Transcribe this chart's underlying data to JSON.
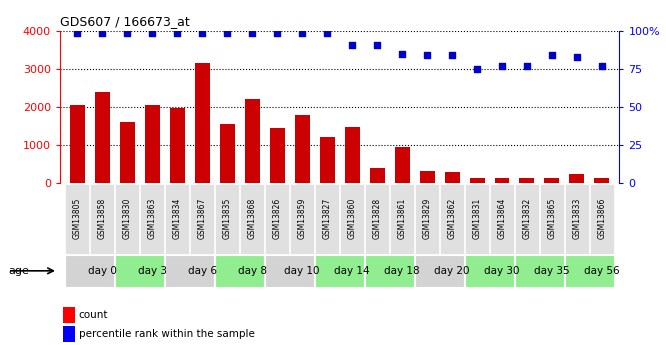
{
  "title": "GDS607 / 166673_at",
  "samples": [
    "GSM13805",
    "GSM13858",
    "GSM13830",
    "GSM13863",
    "GSM13834",
    "GSM13867",
    "GSM13835",
    "GSM13868",
    "GSM13826",
    "GSM13859",
    "GSM13827",
    "GSM13860",
    "GSM13828",
    "GSM13861",
    "GSM13829",
    "GSM13862",
    "GSM13831",
    "GSM13864",
    "GSM13832",
    "GSM13865",
    "GSM13833",
    "GSM13866"
  ],
  "counts": [
    2050,
    2400,
    1600,
    2050,
    1970,
    3150,
    1550,
    2200,
    1450,
    1800,
    1200,
    1480,
    380,
    950,
    300,
    290,
    120,
    140,
    120,
    130,
    230,
    120
  ],
  "percentiles": [
    99,
    99,
    99,
    99,
    99,
    99,
    99,
    99,
    99,
    99,
    99,
    91,
    91,
    85,
    84,
    84,
    75,
    77,
    77,
    84,
    83,
    77
  ],
  "day_groups": [
    {
      "label": "day 0",
      "start": 0,
      "end": 2,
      "color": "#d3d3d3"
    },
    {
      "label": "day 3",
      "start": 2,
      "end": 4,
      "color": "#90ee90"
    },
    {
      "label": "day 6",
      "start": 4,
      "end": 6,
      "color": "#d3d3d3"
    },
    {
      "label": "day 8",
      "start": 6,
      "end": 8,
      "color": "#90ee90"
    },
    {
      "label": "day 10",
      "start": 8,
      "end": 10,
      "color": "#d3d3d3"
    },
    {
      "label": "day 14",
      "start": 10,
      "end": 12,
      "color": "#90ee90"
    },
    {
      "label": "day 18",
      "start": 12,
      "end": 14,
      "color": "#90ee90"
    },
    {
      "label": "day 20",
      "start": 14,
      "end": 16,
      "color": "#d3d3d3"
    },
    {
      "label": "day 30",
      "start": 16,
      "end": 18,
      "color": "#90ee90"
    },
    {
      "label": "day 35",
      "start": 18,
      "end": 20,
      "color": "#90ee90"
    },
    {
      "label": "day 56",
      "start": 20,
      "end": 22,
      "color": "#90ee90"
    }
  ],
  "bar_color": "#cc0000",
  "dot_color": "#0000cc",
  "ylim_left": [
    0,
    4000
  ],
  "ylim_right": [
    0,
    100
  ],
  "yticks_left": [
    0,
    1000,
    2000,
    3000,
    4000
  ],
  "yticks_right": [
    0,
    25,
    50,
    75,
    100
  ],
  "background_color": "#ffffff",
  "legend_count_label": "count",
  "legend_pct_label": "percentile rank within the sample",
  "age_label": "age"
}
